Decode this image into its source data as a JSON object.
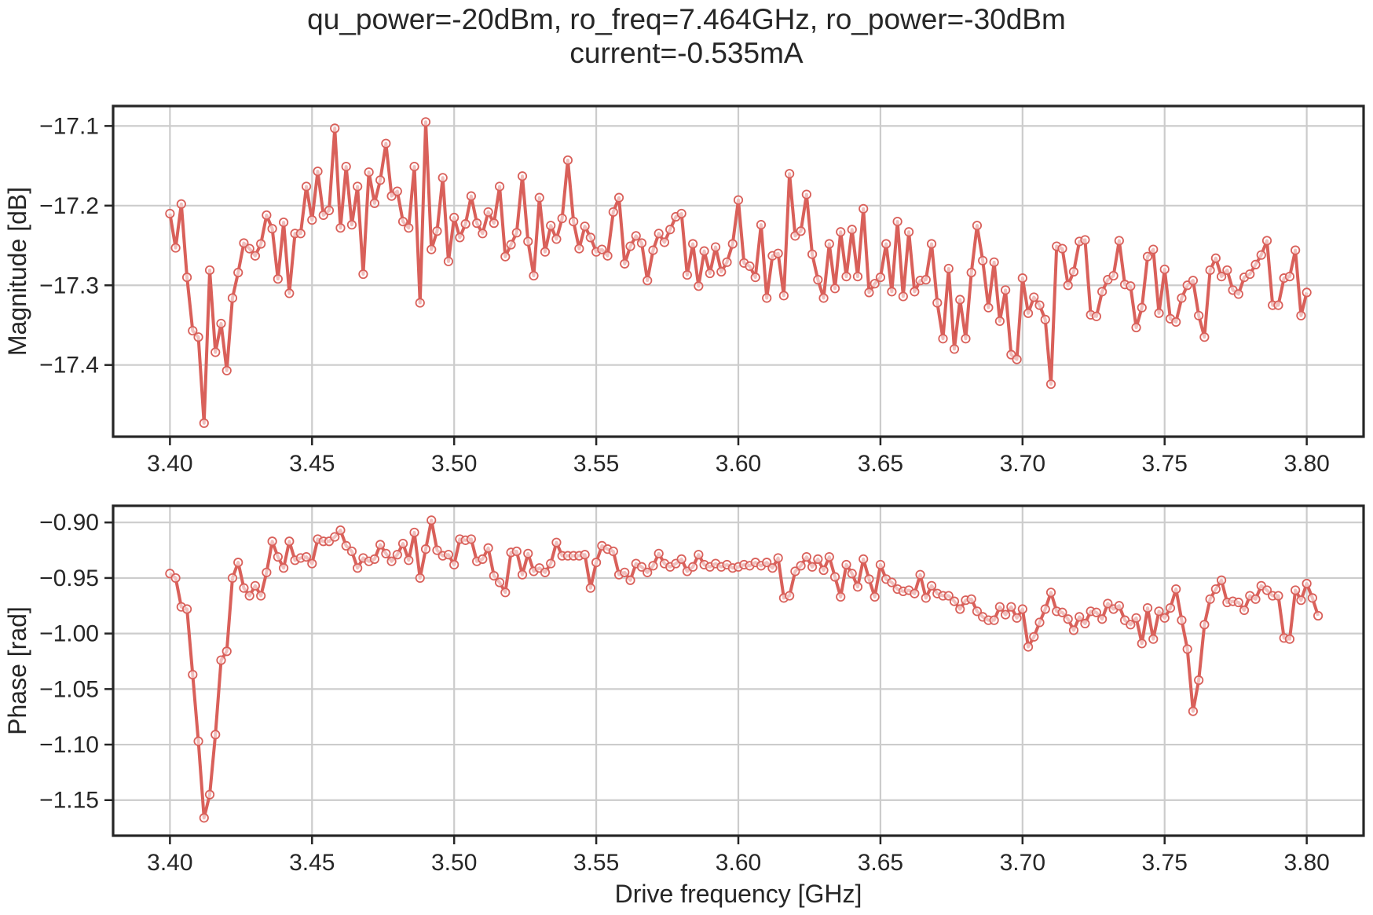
{
  "figure": {
    "title_line1": "qu_power=-20dBm, ro_freq=7.464GHz, ro_power=-30dBm",
    "title_line2": "current=-0.535mA"
  },
  "colors": {
    "series": "#D9605A",
    "grid": "#CCCCCC",
    "axes": "#262626"
  },
  "chart_data": [
    {
      "type": "line",
      "ylabel": "Magnitude [dB]",
      "xlabel": "",
      "xlim": [
        3.38,
        3.82
      ],
      "ylim": [
        -17.49,
        -17.075
      ],
      "xticks": [
        3.4,
        3.45,
        3.5,
        3.55,
        3.6,
        3.65,
        3.7,
        3.75,
        3.8
      ],
      "xtick_labels": [
        "3.40",
        "3.45",
        "3.50",
        "3.55",
        "3.60",
        "3.65",
        "3.70",
        "3.75",
        "3.80"
      ],
      "yticks": [
        -17.1,
        -17.2,
        -17.3,
        -17.4
      ],
      "ytick_labels": [
        "−17.1",
        "−17.2",
        "−17.3",
        "−17.4"
      ],
      "grid": true,
      "marker": "open-circle",
      "series": [
        {
          "x_start": 3.4,
          "x_step": 0.002,
          "values": [
            -17.21,
            -17.253,
            -17.198,
            -17.29,
            -17.357,
            -17.365,
            -17.473,
            -17.281,
            -17.384,
            -17.348,
            -17.407,
            -17.316,
            -17.284,
            -17.247,
            -17.254,
            -17.263,
            -17.248,
            -17.212,
            -17.229,
            -17.292,
            -17.221,
            -17.31,
            -17.235,
            -17.235,
            -17.176,
            -17.218,
            -17.157,
            -17.212,
            -17.206,
            -17.103,
            -17.228,
            -17.151,
            -17.224,
            -17.176,
            -17.286,
            -17.158,
            -17.197,
            -17.168,
            -17.122,
            -17.188,
            -17.182,
            -17.22,
            -17.228,
            -17.151,
            -17.322,
            -17.095,
            -17.255,
            -17.232,
            -17.165,
            -17.27,
            -17.215,
            -17.24,
            -17.223,
            -17.188,
            -17.222,
            -17.235,
            -17.208,
            -17.222,
            -17.176,
            -17.264,
            -17.249,
            -17.234,
            -17.163,
            -17.245,
            -17.288,
            -17.19,
            -17.258,
            -17.225,
            -17.242,
            -17.216,
            -17.143,
            -17.22,
            -17.254,
            -17.226,
            -17.24,
            -17.258,
            -17.255,
            -17.263,
            -17.208,
            -17.19,
            -17.273,
            -17.251,
            -17.238,
            -17.247,
            -17.294,
            -17.256,
            -17.235,
            -17.246,
            -17.23,
            -17.214,
            -17.21,
            -17.287,
            -17.248,
            -17.301,
            -17.257,
            -17.285,
            -17.252,
            -17.283,
            -17.271,
            -17.248,
            -17.193,
            -17.272,
            -17.276,
            -17.29,
            -17.224,
            -17.316,
            -17.263,
            -17.26,
            -17.313,
            -17.16,
            -17.238,
            -17.232,
            -17.186,
            -17.261,
            -17.293,
            -17.316,
            -17.248,
            -17.304,
            -17.233,
            -17.289,
            -17.23,
            -17.289,
            -17.204,
            -17.309,
            -17.298,
            -17.29,
            -17.248,
            -17.308,
            -17.22,
            -17.314,
            -17.233,
            -17.308,
            -17.294,
            -17.293,
            -17.248,
            -17.322,
            -17.367,
            -17.279,
            -17.38,
            -17.318,
            -17.367,
            -17.284,
            -17.225,
            -17.269,
            -17.328,
            -17.271,
            -17.345,
            -17.306,
            -17.387,
            -17.393,
            -17.291,
            -17.335,
            -17.315,
            -17.325,
            -17.343,
            -17.424,
            -17.251,
            -17.254,
            -17.3,
            -17.283,
            -17.245,
            -17.243,
            -17.337,
            -17.339,
            -17.308,
            -17.293,
            -17.288,
            -17.244,
            -17.299,
            -17.301,
            -17.353,
            -17.328,
            -17.264,
            -17.255,
            -17.335,
            -17.28,
            -17.342,
            -17.346,
            -17.316,
            -17.3,
            -17.294,
            -17.338,
            -17.365,
            -17.281,
            -17.266,
            -17.289,
            -17.281,
            -17.306,
            -17.311,
            -17.29,
            -17.286,
            -17.274,
            -17.262,
            -17.244,
            -17.325,
            -17.325,
            -17.291,
            -17.289,
            -17.256,
            -17.338,
            -17.309
          ]
        }
      ]
    },
    {
      "type": "line",
      "ylabel": "Phase [rad]",
      "xlabel": "Drive frequency [GHz]",
      "xlim": [
        3.38,
        3.82
      ],
      "ylim": [
        -1.182,
        -0.885
      ],
      "xticks": [
        3.4,
        3.45,
        3.5,
        3.55,
        3.6,
        3.65,
        3.7,
        3.75,
        3.8
      ],
      "xtick_labels": [
        "3.40",
        "3.45",
        "3.50",
        "3.55",
        "3.60",
        "3.65",
        "3.70",
        "3.75",
        "3.80"
      ],
      "yticks": [
        -0.9,
        -0.95,
        -1.0,
        -1.05,
        -1.1,
        -1.15
      ],
      "ytick_labels": [
        "−0.90",
        "−0.95",
        "−1.00",
        "−1.05",
        "−1.10",
        "−1.15"
      ],
      "grid": true,
      "marker": "open-circle",
      "series": [
        {
          "x_start": 3.4,
          "x_step": 0.002,
          "values": [
            -0.946,
            -0.95,
            -0.976,
            -0.978,
            -1.037,
            -1.097,
            -1.166,
            -1.145,
            -1.091,
            -1.024,
            -1.016,
            -0.95,
            -0.936,
            -0.959,
            -0.966,
            -0.957,
            -0.966,
            -0.945,
            -0.917,
            -0.931,
            -0.941,
            -0.917,
            -0.934,
            -0.932,
            -0.931,
            -0.937,
            -0.915,
            -0.917,
            -0.917,
            -0.913,
            -0.907,
            -0.921,
            -0.926,
            -0.941,
            -0.932,
            -0.935,
            -0.933,
            -0.92,
            -0.928,
            -0.935,
            -0.929,
            -0.919,
            -0.934,
            -0.909,
            -0.95,
            -0.924,
            -0.898,
            -0.925,
            -0.93,
            -0.929,
            -0.938,
            -0.915,
            -0.916,
            -0.915,
            -0.935,
            -0.933,
            -0.923,
            -0.948,
            -0.954,
            -0.963,
            -0.927,
            -0.926,
            -0.947,
            -0.928,
            -0.944,
            -0.941,
            -0.945,
            -0.937,
            -0.918,
            -0.93,
            -0.93,
            -0.93,
            -0.93,
            -0.929,
            -0.959,
            -0.936,
            -0.921,
            -0.924,
            -0.926,
            -0.947,
            -0.945,
            -0.952,
            -0.937,
            -0.94,
            -0.945,
            -0.939,
            -0.928,
            -0.937,
            -0.94,
            -0.937,
            -0.933,
            -0.944,
            -0.94,
            -0.929,
            -0.938,
            -0.94,
            -0.937,
            -0.94,
            -0.938,
            -0.941,
            -0.94,
            -0.938,
            -0.939,
            -0.936,
            -0.939,
            -0.936,
            -0.941,
            -0.932,
            -0.968,
            -0.966,
            -0.944,
            -0.939,
            -0.931,
            -0.94,
            -0.933,
            -0.943,
            -0.931,
            -0.949,
            -0.967,
            -0.938,
            -0.946,
            -0.958,
            -0.933,
            -0.951,
            -0.967,
            -0.938,
            -0.951,
            -0.954,
            -0.96,
            -0.962,
            -0.961,
            -0.964,
            -0.947,
            -0.968,
            -0.957,
            -0.964,
            -0.966,
            -0.966,
            -0.971,
            -0.978,
            -0.97,
            -0.969,
            -0.98,
            -0.985,
            -0.988,
            -0.988,
            -0.976,
            -0.983,
            -0.976,
            -0.986,
            -0.978,
            -1.012,
            -1.003,
            -0.99,
            -0.978,
            -0.963,
            -0.98,
            -0.981,
            -0.987,
            -0.997,
            -0.985,
            -0.991,
            -0.98,
            -0.981,
            -0.987,
            -0.973,
            -0.978,
            -0.975,
            -0.988,
            -0.992,
            -0.986,
            -1.009,
            -0.977,
            -1.005,
            -0.98,
            -0.986,
            -0.977,
            -0.96,
            -0.988,
            -1.014,
            -1.07,
            -1.042,
            -0.992,
            -0.969,
            -0.96,
            -0.952,
            -0.972,
            -0.971,
            -0.972,
            -0.979,
            -0.966,
            -0.969,
            -0.957,
            -0.961,
            -0.966,
            -0.966,
            -1.004,
            -1.005,
            -0.961,
            -0.97,
            -0.955,
            -0.968,
            -0.984
          ]
        }
      ]
    }
  ]
}
